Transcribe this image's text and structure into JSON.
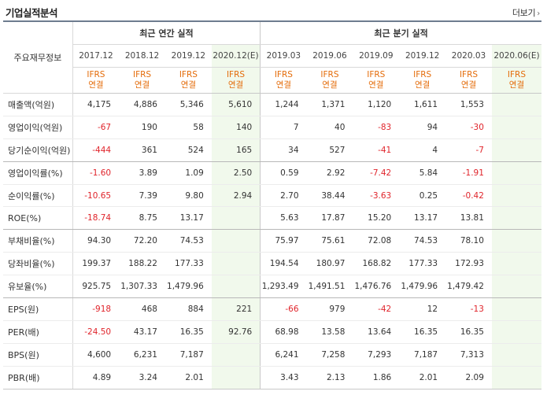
{
  "title": "기업실적분석",
  "more_label": "더보기",
  "table": {
    "row_header_label": "주요재무정보",
    "group_annual": "최근 연간 실적",
    "group_quarter": "최근 분기 실적",
    "annual_periods": [
      "2017.12",
      "2018.12",
      "2019.12",
      "2020.12(E)"
    ],
    "quarter_periods": [
      "2019.03",
      "2019.06",
      "2019.09",
      "2019.12",
      "2020.03",
      "2020.06(E)"
    ],
    "ifrs_line1": "IFRS",
    "ifrs_line2": "연결",
    "rows": [
      {
        "label": "매출액(억원)",
        "values": [
          "4,175",
          "4,886",
          "5,346",
          "5,610",
          "1,244",
          "1,371",
          "1,120",
          "1,611",
          "1,553",
          ""
        ]
      },
      {
        "label": "영업이익(억원)",
        "values": [
          "-67",
          "190",
          "58",
          "140",
          "7",
          "40",
          "-83",
          "94",
          "-30",
          ""
        ]
      },
      {
        "label": "당기순이익(억원)",
        "values": [
          "-444",
          "361",
          "524",
          "165",
          "34",
          "527",
          "-41",
          "4",
          "-7",
          ""
        ]
      },
      {
        "label": "영업이익률(%)",
        "values": [
          "-1.60",
          "3.89",
          "1.09",
          "2.50",
          "0.59",
          "2.92",
          "-7.42",
          "5.84",
          "-1.91",
          ""
        ]
      },
      {
        "label": "순이익률(%)",
        "values": [
          "-10.65",
          "7.39",
          "9.80",
          "2.94",
          "2.70",
          "38.44",
          "-3.63",
          "0.25",
          "-0.42",
          ""
        ]
      },
      {
        "label": "ROE(%)",
        "values": [
          "-18.74",
          "8.75",
          "13.17",
          "",
          "5.63",
          "17.87",
          "15.20",
          "13.17",
          "13.81",
          ""
        ]
      },
      {
        "label": "부채비율(%)",
        "values": [
          "94.30",
          "72.20",
          "74.53",
          "",
          "75.97",
          "75.61",
          "72.08",
          "74.53",
          "78.10",
          ""
        ]
      },
      {
        "label": "당좌비율(%)",
        "values": [
          "199.37",
          "188.22",
          "177.33",
          "",
          "194.54",
          "180.97",
          "168.82",
          "177.33",
          "172.93",
          ""
        ]
      },
      {
        "label": "유보율(%)",
        "values": [
          "925.75",
          "1,307.33",
          "1,479.96",
          "",
          "1,293.49",
          "1,491.51",
          "1,476.76",
          "1,479.96",
          "1,479.42",
          ""
        ]
      },
      {
        "label": "EPS(원)",
        "values": [
          "-918",
          "468",
          "884",
          "221",
          "-66",
          "979",
          "-42",
          "12",
          "-13",
          ""
        ]
      },
      {
        "label": "PER(배)",
        "values": [
          "-24.50",
          "43.17",
          "16.35",
          "92.76",
          "68.98",
          "13.58",
          "13.64",
          "16.35",
          "16.35",
          ""
        ]
      },
      {
        "label": "BPS(원)",
        "values": [
          "4,600",
          "6,231",
          "7,187",
          "",
          "6,241",
          "7,258",
          "7,293",
          "7,187",
          "7,313",
          ""
        ]
      },
      {
        "label": "PBR(배)",
        "values": [
          "4.89",
          "3.24",
          "2.01",
          "",
          "3.43",
          "2.13",
          "1.86",
          "2.01",
          "2.09",
          ""
        ]
      }
    ],
    "negative_color": "#e0242b",
    "ifrs_color": "#e46c0a",
    "estimate_shade_color": "#f1f9ec"
  }
}
